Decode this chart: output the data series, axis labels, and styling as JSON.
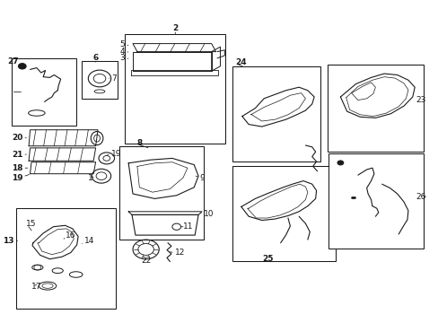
{
  "bg_color": "#ffffff",
  "line_color": "#1a1a1a",
  "fig_width": 4.89,
  "fig_height": 3.6,
  "dpi": 100,
  "boxes": {
    "27": [
      0.022,
      0.61,
      0.148,
      0.21
    ],
    "6": [
      0.183,
      0.695,
      0.082,
      0.115
    ],
    "2": [
      0.282,
      0.555,
      0.23,
      0.34
    ],
    "24": [
      0.528,
      0.5,
      0.2,
      0.295
    ],
    "23": [
      0.745,
      0.53,
      0.22,
      0.27
    ],
    "25": [
      0.528,
      0.192,
      0.235,
      0.295
    ],
    "26": [
      0.748,
      0.23,
      0.218,
      0.295
    ],
    "8": [
      0.27,
      0.258,
      0.192,
      0.29
    ],
    "13": [
      0.033,
      0.045,
      0.228,
      0.31
    ]
  }
}
